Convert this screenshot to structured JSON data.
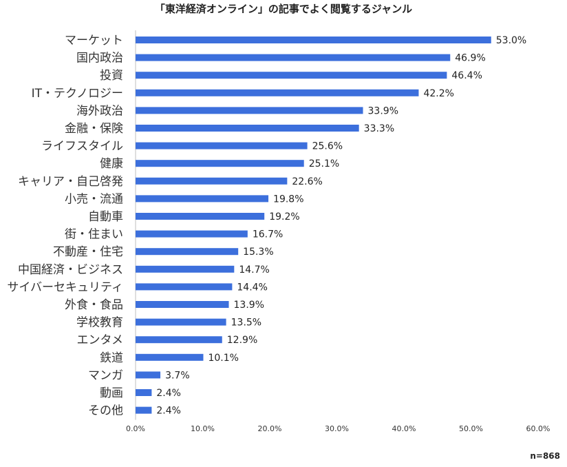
{
  "chart_data": {
    "type": "bar",
    "orientation": "horizontal",
    "title": "「東洋経済オンライン」の記事でよく閲覧するジャンル",
    "categories": [
      "マーケット",
      "国内政治",
      "投資",
      "IT・テクノロジー",
      "海外政治",
      "金融・保険",
      "ライフスタイル",
      "健康",
      "キャリア・自己啓発",
      "小売・流通",
      "自動車",
      "街・住まい",
      "不動産・住宅",
      "中国経済・ビジネス",
      "サイバーセキュリティ",
      "外食・食品",
      "学校教育",
      "エンタメ",
      "鉄道",
      "マンガ",
      "動画",
      "その他"
    ],
    "values": [
      53.0,
      46.9,
      46.4,
      42.2,
      33.9,
      33.3,
      25.6,
      25.1,
      22.6,
      19.8,
      19.2,
      16.7,
      15.3,
      14.7,
      14.4,
      13.9,
      13.5,
      12.9,
      10.1,
      3.7,
      2.4,
      2.4
    ],
    "value_labels": [
      "53.0%",
      "46.9%",
      "46.4%",
      "42.2%",
      "33.9%",
      "33.3%",
      "25.6%",
      "25.1%",
      "22.6%",
      "19.8%",
      "19.2%",
      "16.7%",
      "15.3%",
      "14.7%",
      "14.4%",
      "13.9%",
      "13.5%",
      "12.9%",
      "10.1%",
      "3.7%",
      "2.4%",
      "2.4%"
    ],
    "xlim": [
      0,
      60
    ],
    "x_ticks": [
      0,
      10,
      20,
      30,
      40,
      50,
      60
    ],
    "x_tick_labels": [
      "0.0%",
      "10.0%",
      "20.0%",
      "30.0%",
      "40.0%",
      "50.0%",
      "60.0%"
    ],
    "bar_color": "#3c6fdc",
    "grid": false,
    "note": "n=868"
  }
}
